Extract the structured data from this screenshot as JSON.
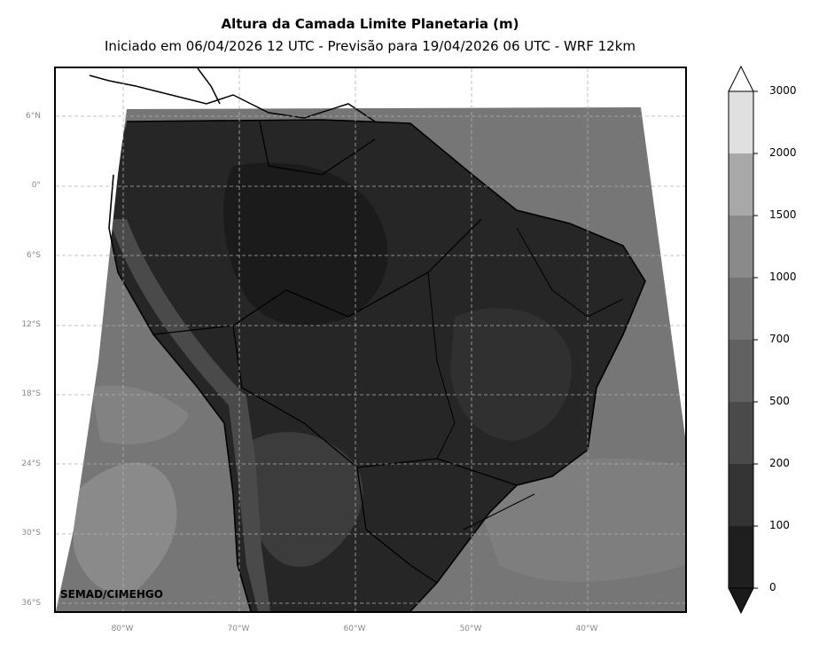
{
  "header": {
    "title": "Altura da Camada Limite Planetaria (m)",
    "subtitle": "Iniciado em 06/04/2026 12 UTC - Previsão para 19/04/2026 06 UTC - WRF 12km"
  },
  "axes": {
    "lat_labels": [
      "6°N",
      "0°",
      "6°S",
      "12°S",
      "18°S",
      "24°S",
      "30°S",
      "36°S"
    ],
    "lon_labels": [
      "80°W",
      "70°W",
      "60°W",
      "50°W",
      "40°W"
    ]
  },
  "colorbar": {
    "levels": [
      "0",
      "100",
      "200",
      "500",
      "700",
      "1000",
      "1500",
      "2000",
      "3000"
    ],
    "colors": [
      "#1f1f1f",
      "#333333",
      "#4a4a4a",
      "#606060",
      "#747474",
      "#8a8a8a",
      "#a8a8a8",
      "#e0e0e0"
    ],
    "over_color": "#ffffff",
    "under_color": "#1a1a1a"
  },
  "credit": "SEMAD/CIMEHGO",
  "colors": {
    "ocean": "#767676",
    "land_dark": "#1e1e1e",
    "land_mid": "#3a3a3a",
    "pacific_light": "#8a8a8a",
    "gridline": "#b0b0b0"
  }
}
